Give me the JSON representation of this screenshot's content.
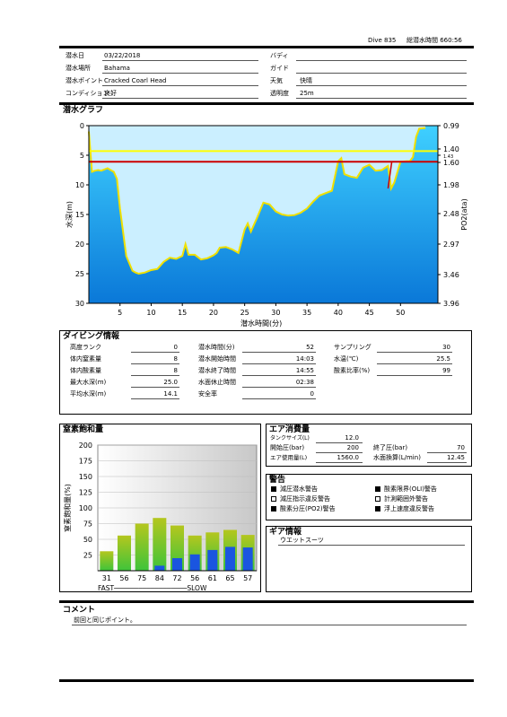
{
  "header": {
    "dive_no": "Dive 835",
    "total_time": "総潜水時間 660:56"
  },
  "info": {
    "date_label": "潜水日",
    "date": "03/22/2018",
    "buddy_label": "バディ",
    "buddy": "",
    "place_label": "潜水場所",
    "place": "Bahama",
    "guide_label": "ガイド",
    "guide": "",
    "point_label": "潜水ポイント",
    "point": "Cracked Coarl Head",
    "weather_label": "天気",
    "weather": "快晴",
    "condition_label": "コンディション",
    "condition": "良好",
    "visibility_label": "透明度",
    "visibility": "25m"
  },
  "graph": {
    "section_title": "潜水グラフ",
    "y_label": "水深(m)",
    "x_label": "潜水時間(分)",
    "y2_label": "PO2(ata)",
    "y_ticks": [
      "0",
      "5",
      "10",
      "15",
      "20",
      "25",
      "30"
    ],
    "x_ticks": [
      "5",
      "10",
      "15",
      "20",
      "25",
      "30",
      "35",
      "40",
      "45",
      "50"
    ],
    "po2_ticks": [
      "0.99",
      "1.40",
      "1.43",
      "1.60",
      "1.98",
      "2.48",
      "2.97",
      "3.46",
      "3.96"
    ]
  },
  "chart_data": [
    {
      "type": "area",
      "title": "潜水グラフ",
      "xlabel": "潜水時間(分)",
      "ylabel": "水深(m)",
      "y2label": "PO2(ata)",
      "xlim": [
        0,
        56
      ],
      "ylim": [
        30,
        0
      ],
      "y2_ticks": [
        0.99,
        1.4,
        1.43,
        1.6,
        1.98,
        2.48,
        2.97,
        3.46,
        3.96
      ],
      "series": [
        {
          "values_x": [
            0,
            0.5,
            1,
            1.5,
            2,
            3,
            4,
            4.5,
            5,
            6,
            7,
            7.5,
            8,
            9,
            10,
            11,
            12,
            13,
            14,
            15,
            15.5,
            16,
            17,
            18,
            19,
            20,
            20.5,
            21,
            22,
            23,
            24,
            25,
            25.5,
            26,
            27,
            28,
            29,
            30,
            31,
            32,
            33,
            34,
            35,
            36,
            37,
            38,
            39,
            40,
            40.5,
            41,
            42,
            43,
            44,
            45,
            46,
            47,
            48,
            48.5,
            49,
            50,
            51,
            51.5,
            52,
            52.5,
            53,
            54
          ],
          "values_y": [
            1,
            7.8,
            7.6,
            7.5,
            7.6,
            7.2,
            7.8,
            9,
            14,
            22,
            24.5,
            24.8,
            25,
            24.8,
            24.4,
            24.2,
            23,
            22.3,
            22.5,
            22,
            20,
            21.8,
            21.8,
            22.6,
            22.4,
            21.9,
            21.5,
            20.6,
            20.5,
            20.9,
            21.5,
            17.5,
            16.5,
            17.9,
            15.5,
            13,
            13.3,
            14.5,
            15,
            15.2,
            15.1,
            14.7,
            14,
            12.8,
            11.8,
            11.4,
            11,
            6,
            5.5,
            8.2,
            8.6,
            8.8,
            7.1,
            6.6,
            7.6,
            7.5,
            6.8,
            10.6,
            9.6,
            6.1,
            6,
            6,
            5.3,
            1.9,
            0.5,
            0.4
          ]
        },
        {
          "name": "limit",
          "values_y": [
            4.3
          ]
        },
        {
          "name": "po2",
          "values_y": [
            6.1
          ]
        }
      ]
    },
    {
      "type": "bar",
      "title": "窒素飽和量",
      "ylabel": "窒素飽和量(%)",
      "ylim": [
        0,
        200
      ],
      "categories": [
        "31",
        "56",
        "75",
        "84",
        "72",
        "56",
        "61",
        "65",
        "57"
      ],
      "series": [
        {
          "values": [
            31,
            56,
            75,
            84,
            72,
            56,
            61,
            65,
            57
          ]
        },
        {
          "values": [
            0,
            0,
            0,
            8,
            20,
            26,
            33,
            38,
            37
          ]
        }
      ]
    }
  ],
  "nitrogen_chart": {
    "y_ticks": [
      "200",
      "175",
      "150",
      "125",
      "100",
      "75",
      "50",
      "25"
    ],
    "fast_slow": "FAST──────────────────SLOW"
  },
  "dive_info": {
    "title": "ダイビング情報",
    "rows": [
      {
        "l1": "高度ランク",
        "v1": "0",
        "l2": "潜水時間(分)",
        "v2": "52",
        "l3": "サンプリング",
        "v3": "30"
      },
      {
        "l1": "体内窒素量",
        "v1": "8",
        "l2": "潜水開始時間",
        "v2": "14:03",
        "l3": "水温(℃)",
        "v3": "25.5"
      },
      {
        "l1": "体内酸素量",
        "v1": "8",
        "l2": "潜水終了時間",
        "v2": "14:55",
        "l3": "酸素比率(%)",
        "v3": "99"
      },
      {
        "l1": "最大水深(m)",
        "v1": "25.0",
        "l2": "水面休止時間",
        "v2": "02:38",
        "l3": "",
        "v3": ""
      },
      {
        "l1": "平均水深(m)",
        "v1": "14.1",
        "l2": "安全率",
        "v2": "0",
        "l3": "",
        "v3": ""
      }
    ]
  },
  "nitrogen_title": "窒素飽和量",
  "air": {
    "title": "エア消費量",
    "tank_label": "タンクサイズ(L)",
    "tank": "12.0",
    "start_label": "開始圧(bar)",
    "start": "200",
    "end_label": "終了圧(bar)",
    "end": "70",
    "used_label": "エア使用量(L)",
    "used": "1560.0",
    "surface_label": "水面換算(L/min)",
    "surface": "12.45"
  },
  "warnings": {
    "title": "警告",
    "items": [
      {
        "label": "減圧潜水警告",
        "on": true
      },
      {
        "label": "酸素限界(OLI)警告",
        "on": true
      },
      {
        "label": "減圧指示違反警告",
        "on": false
      },
      {
        "label": "計測範囲外警告",
        "on": false
      },
      {
        "label": "酸素分圧(PO2)警告",
        "on": true
      },
      {
        "label": "浮上速度違反警告",
        "on": true
      }
    ]
  },
  "gear": {
    "title": "ギア情報",
    "item": "ウエットスーツ"
  },
  "comment": {
    "title": "コメント",
    "text": "前回と同じポイント。"
  },
  "colors": {
    "water": "#1aa0e6",
    "sky": "#cbefff",
    "limit": "#ffff00",
    "po2": "#cc0000",
    "profile": "#f0e000",
    "bar_green": "#7cc62a",
    "bar_blue": "#1a55e0"
  }
}
